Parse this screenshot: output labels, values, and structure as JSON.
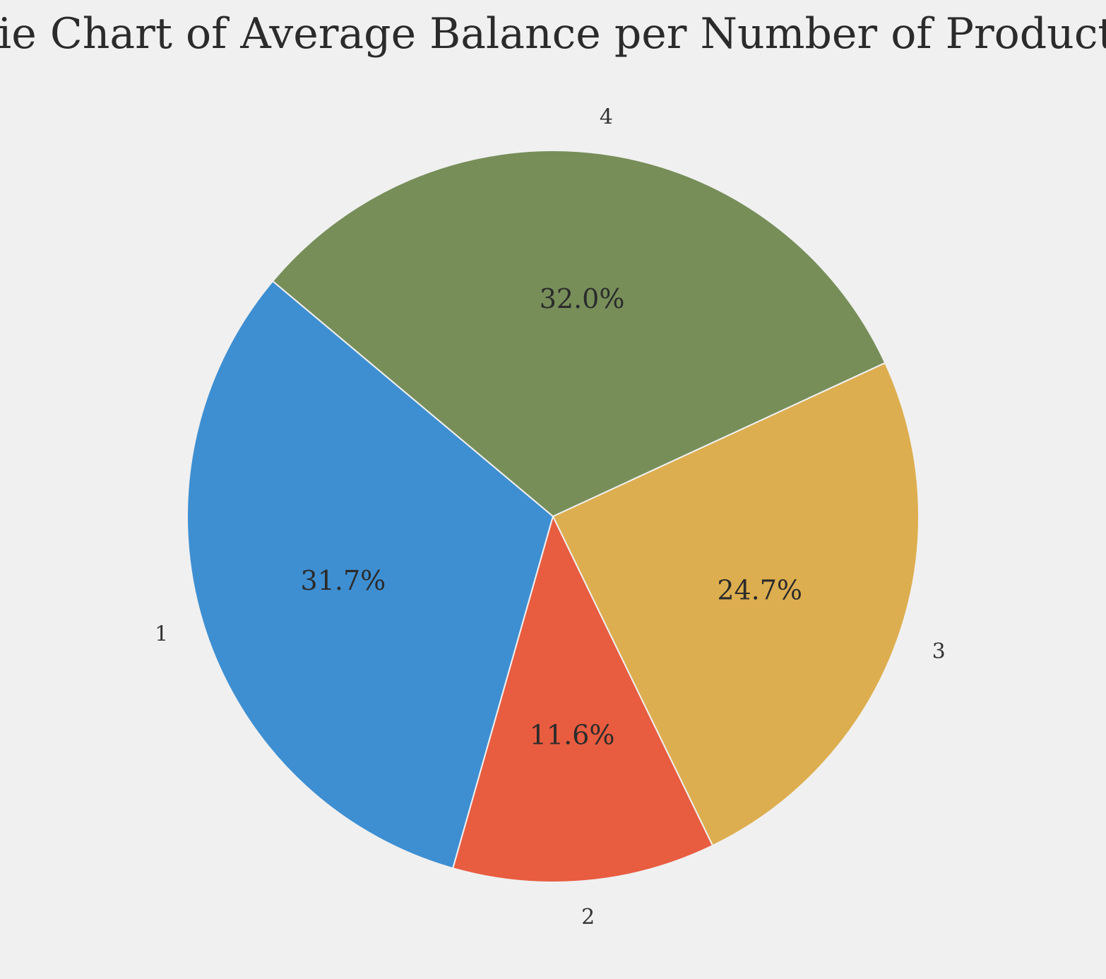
{
  "chart_data": {
    "type": "pie",
    "title": "Pie Chart of Average Balance per Number of Products",
    "categories": [
      "1",
      "2",
      "3",
      "4"
    ],
    "values": [
      31.7,
      11.6,
      24.7,
      32.0
    ],
    "percent_labels": [
      "31.7%",
      "11.6%",
      "24.7%",
      "32.0%"
    ],
    "colors": [
      "#3e8fd2",
      "#e85c40",
      "#ddae4f",
      "#778e59"
    ],
    "wedge_edge_color": "#f0f0f0",
    "background_color": "#f0f0f0",
    "start_angle_deg": 140,
    "direction": "counterclockwise",
    "legend": "none",
    "grid": false
  }
}
